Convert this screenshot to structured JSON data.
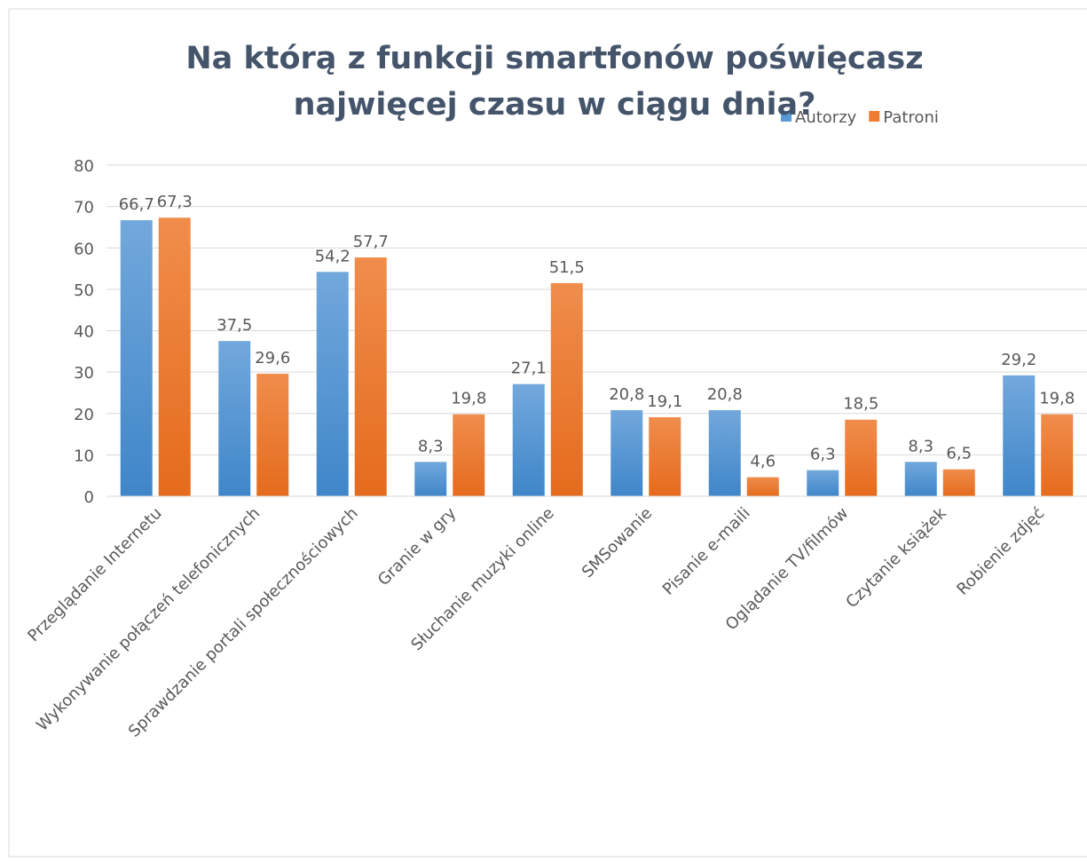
{
  "chart_data": {
    "type": "bar",
    "title": "Na którą z funkcji smartfonów poświęcasz najwięcej czasu w ciągu dnia?",
    "categories": [
      "Przeglądanie Internetu",
      "Wykonywanie połączeń telefonicznych",
      "Sprawdzanie portali społecznościowych",
      "Granie w gry",
      "Słuchanie muzyki online",
      "SMSowanie",
      "Pisanie e-maili",
      "Oglądanie TV/filmów",
      "Czytanie książek",
      "Robienie zdjęć"
    ],
    "series": [
      {
        "name": "Autorzy",
        "color": "#5b9bd5",
        "values": [
          66.7,
          37.5,
          54.2,
          8.3,
          27.1,
          20.8,
          20.8,
          6.3,
          8.3,
          29.2
        ],
        "value_labels": [
          "66,7",
          "37,5",
          "54,2",
          "8,3",
          "27,1",
          "20,8",
          "20,8",
          "6,3",
          "8,3",
          "29,2"
        ]
      },
      {
        "name": "Patroni",
        "color": "#ed7d31",
        "values": [
          67.3,
          29.6,
          57.7,
          19.8,
          51.5,
          19.1,
          4.6,
          18.5,
          6.5,
          19.8
        ],
        "value_labels": [
          "67,3",
          "29,6",
          "57,7",
          "19,8",
          "51,5",
          "19,1",
          "4,6",
          "18,5",
          "6,5",
          "19,8"
        ]
      }
    ],
    "ylim": [
      0,
      80
    ],
    "yticks": [
      0,
      10,
      20,
      30,
      40,
      50,
      60,
      70,
      80
    ],
    "grid": true,
    "legend": "top-right"
  }
}
